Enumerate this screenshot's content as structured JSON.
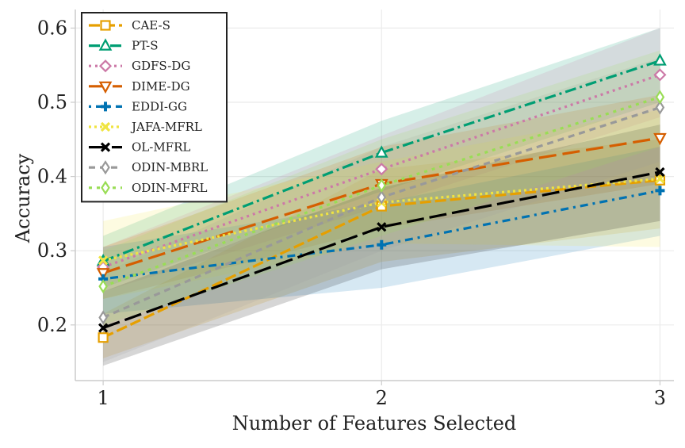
{
  "chart_data": {
    "type": "line",
    "xlabel": "Number of Features Selected",
    "ylabel": "Accuracy",
    "x": [
      1,
      2,
      3
    ],
    "xlim": [
      0.9,
      3.05
    ],
    "ylim": [
      0.125,
      0.625
    ],
    "xticks": [
      1,
      2,
      3
    ],
    "yticks": [
      0.2,
      0.3,
      0.4,
      0.5,
      0.6
    ],
    "grid": true,
    "legend_position": "top-left",
    "series": [
      {
        "name": "CAE-S",
        "values": [
          0.183,
          0.36,
          0.395
        ],
        "lower": [
          0.155,
          0.285,
          0.33
        ],
        "upper": [
          0.215,
          0.41,
          0.45
        ],
        "color": "#E69F00",
        "dash": "14,5",
        "marker": "square"
      },
      {
        "name": "PT-S",
        "values": [
          0.286,
          0.432,
          0.556
        ],
        "lower": [
          0.25,
          0.38,
          0.5
        ],
        "upper": [
          0.32,
          0.475,
          0.6
        ],
        "color": "#009E73",
        "dash": "14,5,3,5",
        "marker": "triangle-up"
      },
      {
        "name": "GDFS-DG",
        "values": [
          0.278,
          0.41,
          0.537
        ],
        "lower": [
          0.245,
          0.36,
          0.48
        ],
        "upper": [
          0.305,
          0.455,
          0.6
        ],
        "color": "#CC79A7",
        "dash": "3,5",
        "marker": "diamond"
      },
      {
        "name": "DIME-DG",
        "values": [
          0.27,
          0.39,
          0.452
        ],
        "lower": [
          0.235,
          0.33,
          0.39
        ],
        "upper": [
          0.305,
          0.44,
          0.51
        ],
        "color": "#D55E00",
        "dash": "22,8",
        "marker": "triangle-down"
      },
      {
        "name": "EDDI-GG",
        "values": [
          0.262,
          0.308,
          0.381
        ],
        "lower": [
          0.215,
          0.25,
          0.32
        ],
        "upper": [
          0.305,
          0.365,
          0.44
        ],
        "color": "#0072B2",
        "dash": "3,6,10,6",
        "marker": "plus"
      },
      {
        "name": "JAFA-MFRL",
        "values": [
          0.287,
          0.365,
          0.397
        ],
        "lower": [
          0.235,
          0.31,
          0.305
        ],
        "upper": [
          0.34,
          0.42,
          0.49
        ],
        "color": "#F0E442",
        "dash": "3,4",
        "marker": "x"
      },
      {
        "name": "OL-MFRL",
        "values": [
          0.196,
          0.332,
          0.406
        ],
        "lower": [
          0.145,
          0.275,
          0.34
        ],
        "upper": [
          0.245,
          0.385,
          0.47
        ],
        "color": "#000000",
        "dash": "22,7",
        "marker": "x"
      },
      {
        "name": "ODIN-MBRL",
        "values": [
          0.21,
          0.372,
          0.493
        ],
        "lower": [
          0.15,
          0.3,
          0.42
        ],
        "upper": [
          0.27,
          0.44,
          0.56
        ],
        "color": "#999999",
        "dash": "8,6",
        "marker": "thin-diamond"
      },
      {
        "name": "ODIN-MFRL",
        "values": [
          0.252,
          0.388,
          0.507
        ],
        "lower": [
          0.2,
          0.32,
          0.44
        ],
        "upper": [
          0.3,
          0.45,
          0.57
        ],
        "color": "#99DD55",
        "dash": "4,6",
        "marker": "thin-diamond"
      }
    ]
  }
}
